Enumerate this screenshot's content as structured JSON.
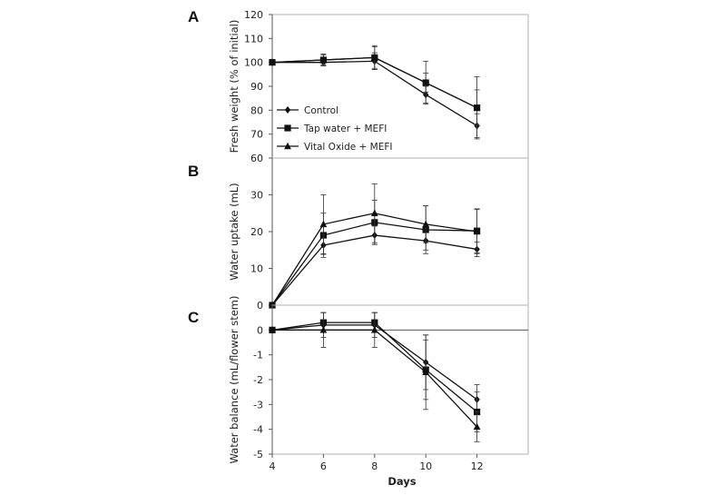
{
  "chart_data": {
    "type": "line",
    "xlabel": "Days",
    "x": [
      4,
      6,
      8,
      10,
      12
    ],
    "x_tick_labels": [
      "4",
      "6",
      "8",
      "10",
      "12"
    ],
    "xlim": [
      4,
      14
    ],
    "legend": {
      "placement": "lower-left of panel A",
      "entries": [
        "Control",
        "Tap water + MEFI",
        "Vital Oxide + MEFI"
      ]
    },
    "panels": [
      {
        "label": "A",
        "ylabel": "Fresh weight (% of initial)",
        "ylim": [
          60,
          120
        ],
        "y_ticks": [
          60,
          70,
          80,
          90,
          100,
          110,
          120
        ],
        "y_tick_labels": [
          "60",
          "70",
          "80",
          "90",
          "100",
          "110",
          "120"
        ],
        "series": [
          {
            "name": "Control",
            "marker": "diamond",
            "values": [
              100,
              100,
              100.5,
              86.5,
              73.5
            ],
            "errors": [
              0,
              1.5,
              3.5,
              3.5,
              5
            ]
          },
          {
            "name": "Tap water + MEFI",
            "marker": "square",
            "values": [
              100,
              101,
              102,
              91.5,
              81
            ],
            "errors": [
              0,
              2,
              4.5,
              9,
              13
            ]
          },
          {
            "name": "Vital Oxide + MEFI",
            "marker": "triangle",
            "values": [
              100,
              101,
              102,
              91.5,
              81
            ],
            "errors": [
              0,
              2.5,
              5,
              4,
              7.5
            ]
          }
        ]
      },
      {
        "label": "B",
        "ylabel": "Water uptake (mL)",
        "ylim": [
          0,
          40
        ],
        "y_ticks": [
          0,
          10,
          20,
          30
        ],
        "y_tick_labels": [
          "0",
          "10",
          "20",
          "30"
        ],
        "series": [
          {
            "name": "Control",
            "marker": "diamond",
            "values": [
              0,
              16.3,
              19,
              17.5,
              15.2
            ],
            "errors": [
              0,
              2.5,
              2.5,
              2.5,
              2
            ]
          },
          {
            "name": "Tap water + MEFI",
            "marker": "square",
            "values": [
              0,
              19,
              22.5,
              20.5,
              20.2
            ],
            "errors": [
              0,
              6,
              6,
              6.5,
              6
            ]
          },
          {
            "name": "Vital Oxide + MEFI",
            "marker": "triangle",
            "values": [
              0,
              22,
              25,
              22,
              20
            ],
            "errors": [
              0,
              8,
              8,
              5,
              6
            ]
          }
        ]
      },
      {
        "label": "C",
        "ylabel": "Water balance (mL/flower stem)",
        "ylim": [
          -5,
          1
        ],
        "y_ticks": [
          -5,
          -4,
          -3,
          -2,
          -1,
          0
        ],
        "y_tick_labels": [
          "-5",
          "-4",
          "-3",
          "-2",
          "-1",
          "0"
        ],
        "series": [
          {
            "name": "Control",
            "marker": "diamond",
            "values": [
              0,
              0.2,
              0.2,
              -1.3,
              -2.8
            ],
            "errors": [
              0,
              0.5,
              0.5,
              1.1,
              0.6
            ]
          },
          {
            "name": "Tap water + MEFI",
            "marker": "square",
            "values": [
              0,
              0.3,
              0.3,
              -1.6,
              -3.3
            ],
            "errors": [
              0,
              0.4,
              0.4,
              1.2,
              0.8
            ]
          },
          {
            "name": "Vital Oxide + MEFI",
            "marker": "triangle",
            "values": [
              0,
              0,
              0,
              -1.7,
              -3.9
            ],
            "errors": [
              0,
              0.7,
              0.7,
              1.5,
              0.6
            ]
          }
        ]
      }
    ]
  }
}
